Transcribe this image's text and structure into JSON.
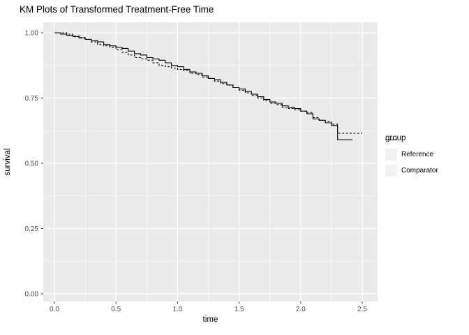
{
  "title": "KM Plots of Transformed Treatment-Free Time",
  "colors": {
    "background": "#FFFFFF",
    "panel_bg": "#EBEBEB",
    "grid_major": "#FFFFFF",
    "grid_minor": "#FFFFFF",
    "tick_text": "#4D4D4D",
    "tick_mark": "#333333",
    "line": "#000000",
    "legend_key_bg": "#F2F2F2"
  },
  "legend": {
    "title": "group",
    "position": "right",
    "items": [
      {
        "label": "Reference",
        "line": "solid"
      },
      {
        "label": "Comparator",
        "line": "dashed"
      }
    ]
  },
  "chart_data": {
    "type": "line",
    "subtype": "kaplan-meier-step",
    "title": "KM Plots of Transformed Treatment-Free Time",
    "xlabel": "time",
    "ylabel": "survival",
    "xlim": [
      0,
      2.5
    ],
    "ylim": [
      0,
      1
    ],
    "xticks": [
      0.0,
      0.5,
      1.0,
      1.5,
      2.0,
      2.5
    ],
    "xtick_labels": [
      "0.0",
      "0.5",
      "1.0",
      "1.5",
      "2.0",
      "2.5"
    ],
    "yticks": [
      0.0,
      0.25,
      0.5,
      0.75,
      1.0
    ],
    "ytick_labels": [
      "0.00",
      "0.25",
      "0.50",
      "0.75",
      "1.00"
    ],
    "x_minor": [
      0.25,
      0.75,
      1.25,
      1.75,
      2.25
    ],
    "y_minor": [
      0.125,
      0.375,
      0.625,
      0.875
    ],
    "grid": "major and minor white gridlines on gray panel",
    "legend_title": "group",
    "legend_position": "right",
    "series": [
      {
        "name": "Reference",
        "line": "solid",
        "color": "#000000",
        "points": [
          [
            0.0,
            1.0
          ],
          [
            0.05,
            0.995
          ],
          [
            0.1,
            0.99
          ],
          [
            0.15,
            0.985
          ],
          [
            0.2,
            0.98
          ],
          [
            0.25,
            0.975
          ],
          [
            0.3,
            0.97
          ],
          [
            0.35,
            0.965
          ],
          [
            0.4,
            0.955
          ],
          [
            0.45,
            0.95
          ],
          [
            0.5,
            0.945
          ],
          [
            0.55,
            0.94
          ],
          [
            0.6,
            0.93
          ],
          [
            0.65,
            0.92
          ],
          [
            0.7,
            0.915
          ],
          [
            0.75,
            0.905
          ],
          [
            0.8,
            0.9
          ],
          [
            0.85,
            0.895
          ],
          [
            0.9,
            0.885
          ],
          [
            0.95,
            0.875
          ],
          [
            1.0,
            0.87
          ],
          [
            1.05,
            0.86
          ],
          [
            1.1,
            0.85
          ],
          [
            1.15,
            0.845
          ],
          [
            1.2,
            0.835
          ],
          [
            1.25,
            0.825
          ],
          [
            1.3,
            0.82
          ],
          [
            1.35,
            0.81
          ],
          [
            1.4,
            0.8
          ],
          [
            1.45,
            0.79
          ],
          [
            1.5,
            0.785
          ],
          [
            1.55,
            0.775
          ],
          [
            1.6,
            0.765
          ],
          [
            1.65,
            0.755
          ],
          [
            1.7,
            0.745
          ],
          [
            1.75,
            0.735
          ],
          [
            1.8,
            0.73
          ],
          [
            1.85,
            0.72
          ],
          [
            1.9,
            0.715
          ],
          [
            1.95,
            0.71
          ],
          [
            2.0,
            0.7
          ],
          [
            2.05,
            0.69
          ],
          [
            2.1,
            0.67
          ],
          [
            2.15,
            0.665
          ],
          [
            2.2,
            0.655
          ],
          [
            2.25,
            0.645
          ],
          [
            2.3,
            0.59
          ],
          [
            2.42,
            0.59
          ]
        ]
      },
      {
        "name": "Comparator",
        "line": "dashed",
        "color": "#000000",
        "points": [
          [
            0.0,
            1.0
          ],
          [
            0.06,
            1.0
          ],
          [
            0.1,
            0.995
          ],
          [
            0.15,
            0.988
          ],
          [
            0.2,
            0.982
          ],
          [
            0.25,
            0.975
          ],
          [
            0.3,
            0.965
          ],
          [
            0.35,
            0.955
          ],
          [
            0.4,
            0.95
          ],
          [
            0.45,
            0.945
          ],
          [
            0.5,
            0.935
          ],
          [
            0.55,
            0.925
          ],
          [
            0.6,
            0.915
          ],
          [
            0.65,
            0.905
          ],
          [
            0.7,
            0.9
          ],
          [
            0.75,
            0.895
          ],
          [
            0.8,
            0.885
          ],
          [
            0.85,
            0.875
          ],
          [
            0.9,
            0.87
          ],
          [
            0.95,
            0.865
          ],
          [
            1.0,
            0.86
          ],
          [
            1.05,
            0.855
          ],
          [
            1.1,
            0.845
          ],
          [
            1.15,
            0.84
          ],
          [
            1.2,
            0.83
          ],
          [
            1.25,
            0.825
          ],
          [
            1.3,
            0.815
          ],
          [
            1.35,
            0.805
          ],
          [
            1.4,
            0.8
          ],
          [
            1.45,
            0.79
          ],
          [
            1.5,
            0.78
          ],
          [
            1.55,
            0.77
          ],
          [
            1.6,
            0.76
          ],
          [
            1.65,
            0.75
          ],
          [
            1.7,
            0.74
          ],
          [
            1.75,
            0.73
          ],
          [
            1.8,
            0.725
          ],
          [
            1.85,
            0.715
          ],
          [
            1.9,
            0.71
          ],
          [
            1.95,
            0.705
          ],
          [
            2.0,
            0.7
          ],
          [
            2.05,
            0.695
          ],
          [
            2.1,
            0.675
          ],
          [
            2.15,
            0.665
          ],
          [
            2.2,
            0.66
          ],
          [
            2.25,
            0.65
          ],
          [
            2.3,
            0.615
          ],
          [
            2.5,
            0.615
          ]
        ]
      }
    ]
  }
}
